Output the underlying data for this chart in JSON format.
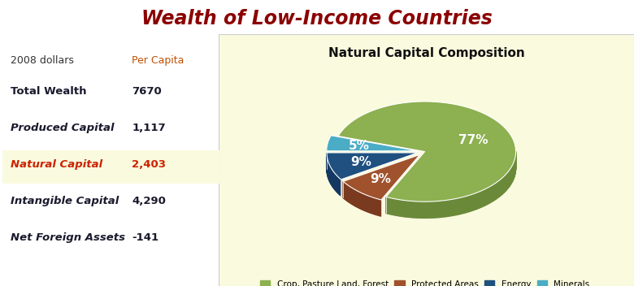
{
  "title": "Wealth of Low-Income Countries",
  "title_color": "#8B0000",
  "pie_title": "Natural Capital Composition",
  "pie_bg_color": "#FAFADE",
  "pie_slices": [
    77,
    9,
    9,
    5
  ],
  "pie_labels": [
    "77%",
    "9%",
    "9%",
    "5%"
  ],
  "pie_colors_top": [
    "#8DB050",
    "#A0522D",
    "#1F5080",
    "#4BACC6"
  ],
  "pie_colors_side": [
    "#6A8A3A",
    "#7A3A20",
    "#153860",
    "#2A8AA6"
  ],
  "pie_legend_labels": [
    "Crop, Pasture Land, Forest",
    "Protected Areas",
    "Energy",
    "Minerals"
  ],
  "pie_explode": [
    0,
    0.08,
    0.08,
    0.08
  ],
  "startangle": 162,
  "table_header_col1": "2008 dollars",
  "table_header_col2": "Per Capita",
  "table_rows": [
    {
      "label": "Total Wealth",
      "value": "7670",
      "bold": true,
      "italic": false,
      "highlight": false,
      "red": false
    },
    {
      "label": "Produced Capital",
      "value": "1,117",
      "bold": true,
      "italic": true,
      "highlight": false,
      "red": false
    },
    {
      "label": "Natural Capital",
      "value": "2,403",
      "bold": true,
      "italic": true,
      "highlight": true,
      "red": true
    },
    {
      "label": "Intangible Capital",
      "value": "4,290",
      "bold": true,
      "italic": true,
      "highlight": false,
      "red": false
    },
    {
      "label": "Net Foreign Assets",
      "value": "-141",
      "bold": true,
      "italic": true,
      "highlight": false,
      "red": false
    }
  ],
  "label_color_dark": "#1A1A2E",
  "label_color_red": "#CC2200",
  "highlight_bg": "#FAFADE",
  "depth": 0.18
}
